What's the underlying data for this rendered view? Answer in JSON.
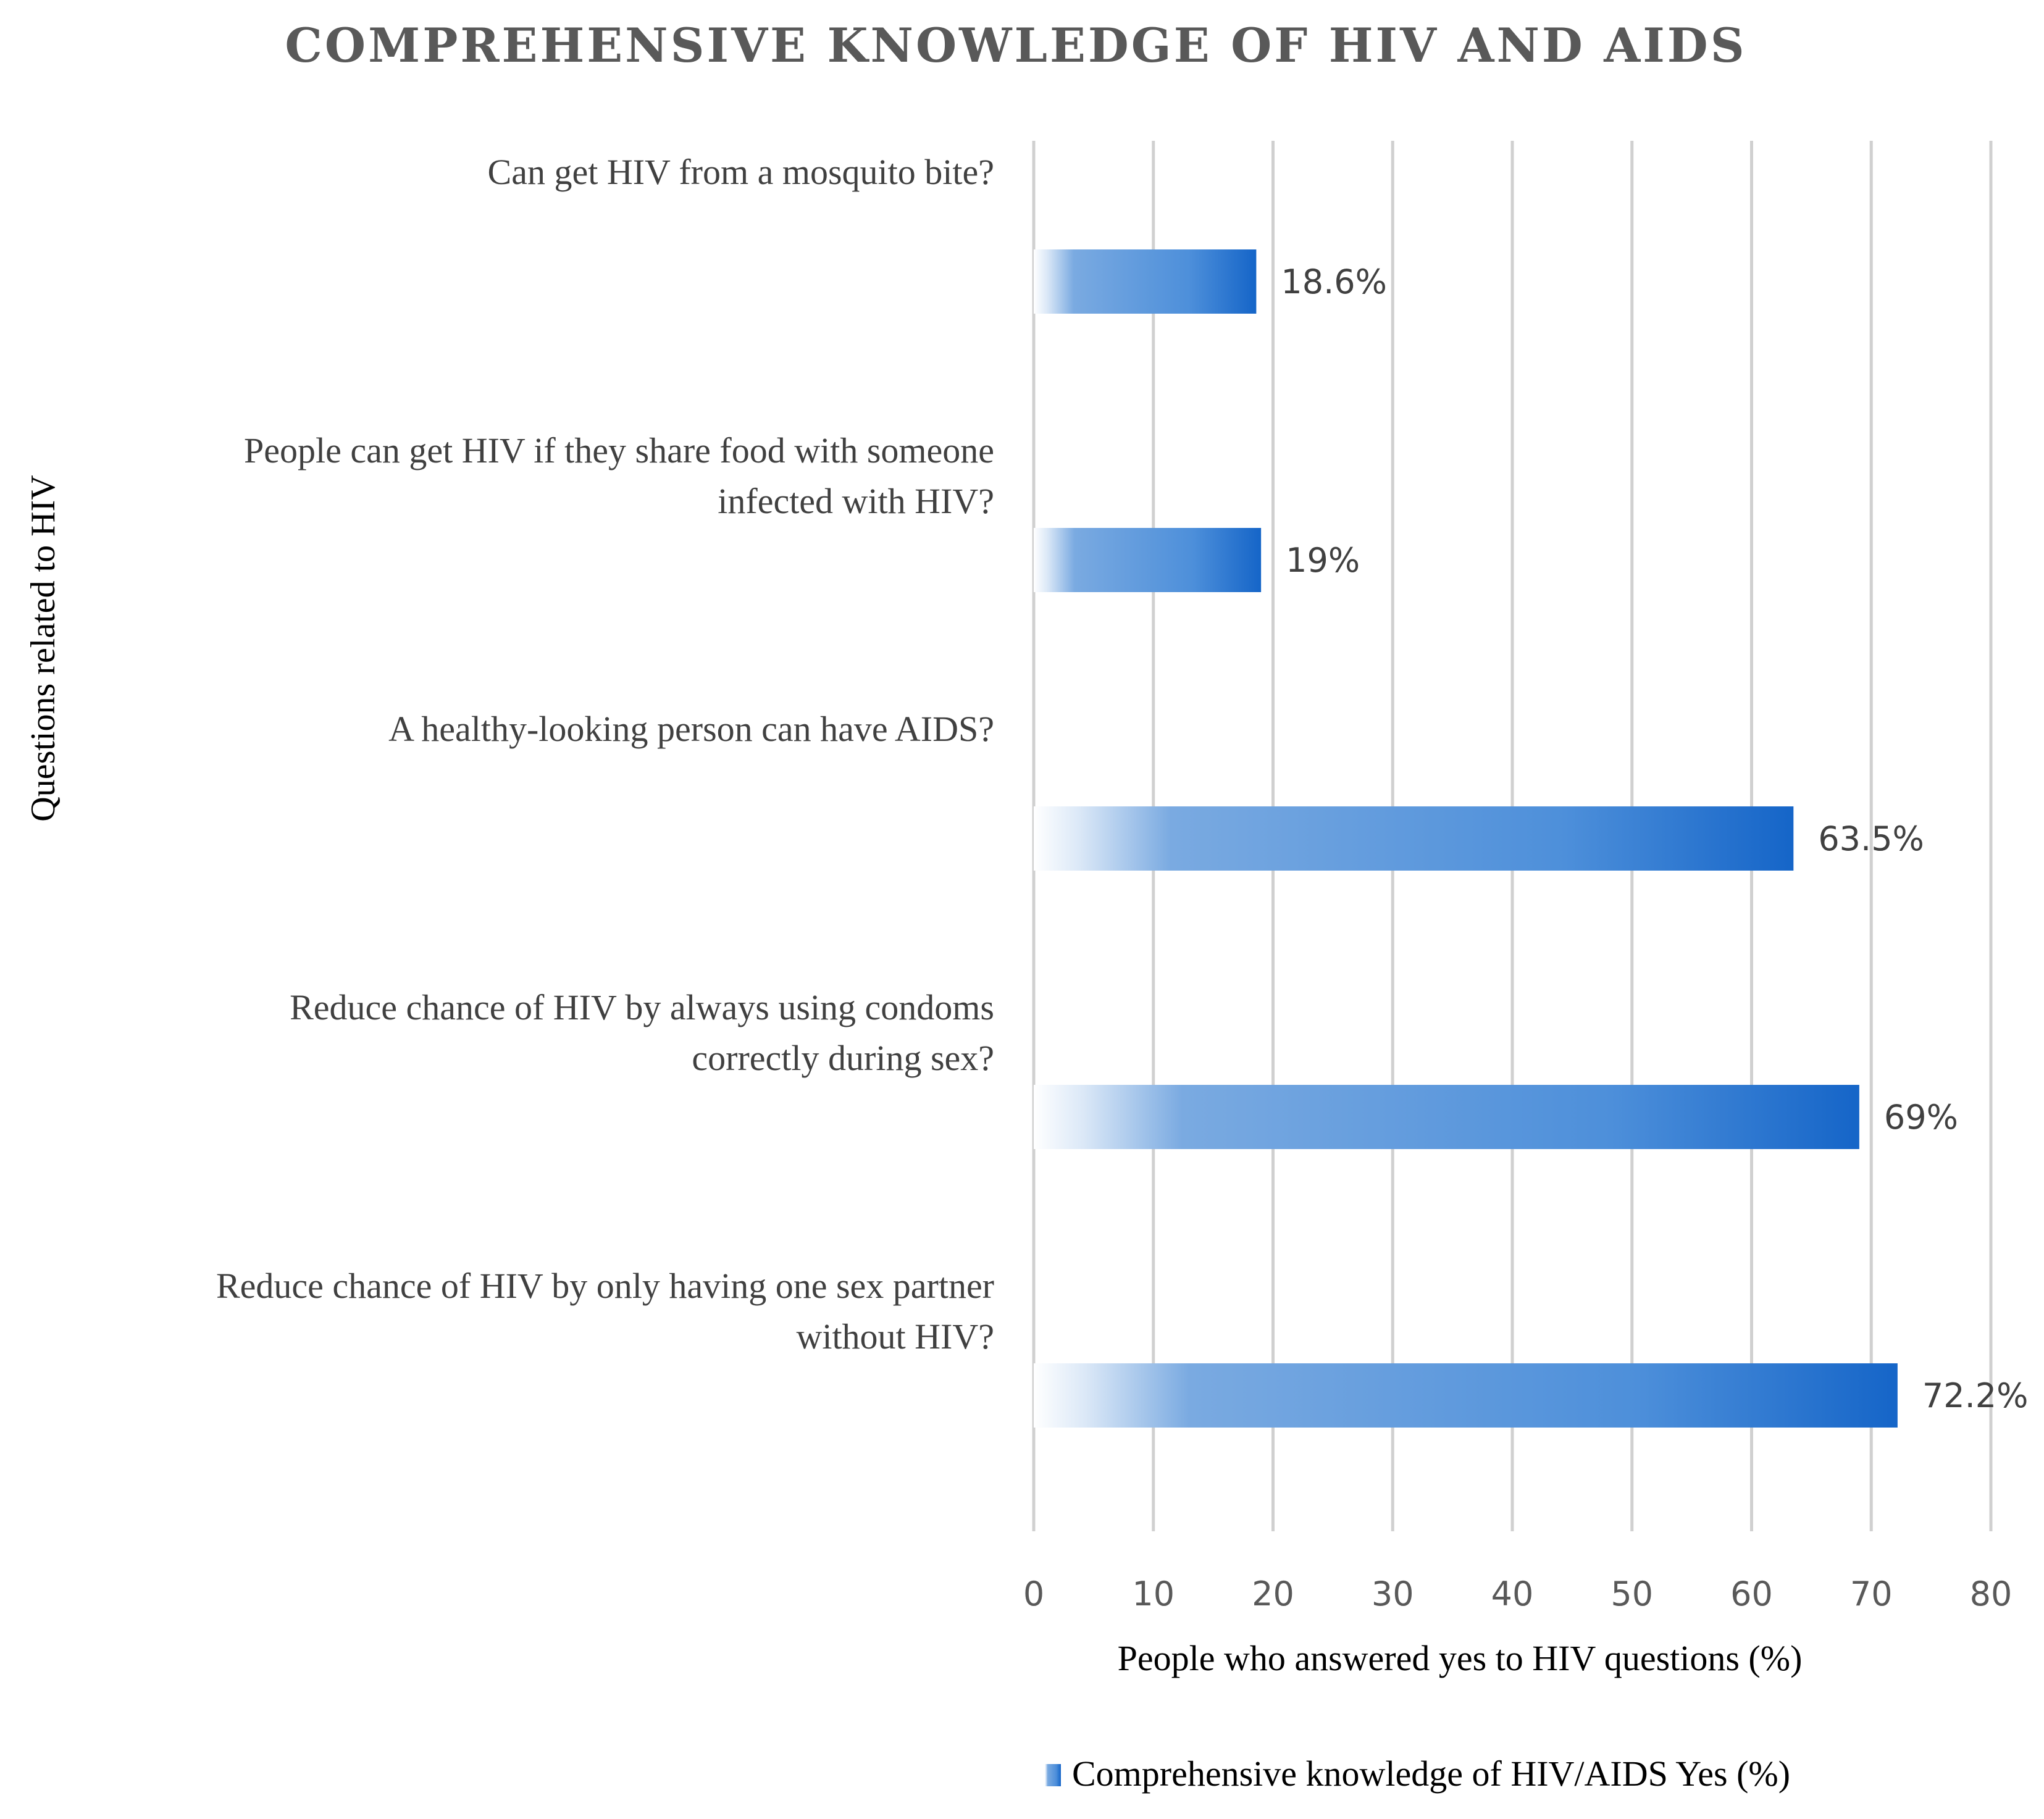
{
  "chart_data": {
    "type": "bar",
    "orientation": "horizontal",
    "title": "COMPREHENSIVE KNOWLEDGE OF HIV AND AIDS",
    "ylabel": "Questions related to HIV",
    "xlabel": "People who answered yes to HIV questions (%)",
    "xlim": [
      0,
      80
    ],
    "xticks": [
      "0",
      "10",
      "20",
      "30",
      "40",
      "50",
      "60",
      "70",
      "80"
    ],
    "grid": true,
    "legend_position": "bottom",
    "categories": [
      [
        "Can get HIV from a mosquito bite?"
      ],
      [
        "People can get HIV if they share food with someone",
        "infected with HIV?"
      ],
      [
        "A healthy-looking person can have AIDS?"
      ],
      [
        "Reduce chance of HIV by always using condoms",
        "correctly during sex?"
      ],
      [
        "Reduce chance of HIV by only having one sex partner",
        "without HIV?"
      ]
    ],
    "series": [
      {
        "name": "Comprehensive knowledge of HIV/AIDS Yes (%)",
        "values": [
          18.6,
          19,
          63.5,
          69,
          72.2
        ],
        "data_labels": [
          "18.6%",
          "19%",
          "63.5%",
          "69%",
          "72.2%"
        ],
        "color": "#1565c8"
      }
    ]
  }
}
